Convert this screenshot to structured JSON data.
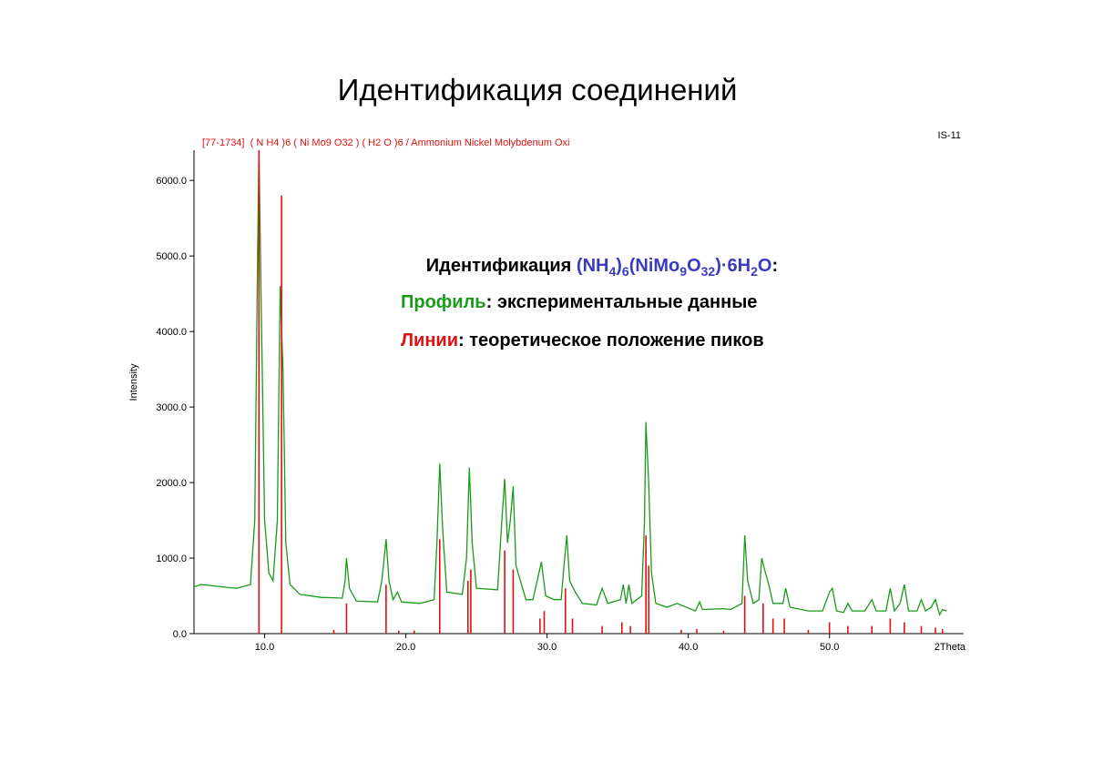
{
  "title": "Идентификация соединений",
  "annotations": [
    [
      "Идентификация ",
      "(NH",
      "4",
      ")",
      "6",
      "(NiMo",
      "9",
      "O",
      "32",
      ")·6H",
      "2",
      "O",
      ":"
    ],
    [
      "Профиль",
      ": экспериментальные данные"
    ],
    [
      "Линии",
      ": теоретическое положение пиков"
    ]
  ],
  "chart_data": {
    "type": "line",
    "title": "[77-1734]  ( N H4 )6 ( Ni Mo9 O32 ) ( H2 O )6 / Ammonium Nickel Molybdenum Oxi",
    "corner_label": "IS-11",
    "ylabel": "Intensity",
    "xlabel": "2Theta",
    "xlim": [
      5,
      59.5
    ],
    "ylim": [
      0,
      6400
    ],
    "xticks": [
      {
        "value": 10,
        "label": "10.0"
      },
      {
        "value": 20,
        "label": "20.0"
      },
      {
        "value": 30,
        "label": "30.0"
      },
      {
        "value": 40,
        "label": "40.0"
      },
      {
        "value": 50,
        "label": "50.0"
      }
    ],
    "yticks": [
      {
        "value": 0,
        "label": "0.0"
      },
      {
        "value": 1000,
        "label": "1000.0"
      },
      {
        "value": 2000,
        "label": "2000.0"
      },
      {
        "value": 3000,
        "label": "3000.0"
      },
      {
        "value": 4000,
        "label": "4000.0"
      },
      {
        "value": 5000,
        "label": "5000.0"
      },
      {
        "value": 6000,
        "label": "6000.0"
      }
    ],
    "series": [
      {
        "name": "Профиль",
        "style": "line",
        "color": "#1a9a1a",
        "x": [
          5,
          5.5,
          6,
          7,
          8,
          9,
          9.3,
          9.5,
          9.6,
          9.75,
          10,
          10.3,
          10.6,
          10.9,
          11.1,
          11.3,
          11.5,
          11.8,
          12.5,
          14,
          15.5,
          15.7,
          15.8,
          16,
          16.5,
          18,
          18.3,
          18.6,
          18.8,
          19.1,
          19.4,
          19.7,
          21,
          22,
          22.2,
          22.4,
          22.6,
          22.9,
          24,
          24.3,
          24.5,
          24.7,
          25,
          26.5,
          26.8,
          27,
          27.2,
          27.4,
          27.6,
          27.8,
          28.5,
          29,
          29.3,
          29.6,
          29.9,
          30.5,
          31,
          31.2,
          31.4,
          31.6,
          32,
          32.5,
          33.5,
          33.9,
          34.3,
          35.2,
          35.4,
          35.6,
          35.8,
          36,
          36.7,
          36.9,
          37,
          37.2,
          37.4,
          37.7,
          38.5,
          39.2,
          40.5,
          40.8,
          41,
          42.5,
          43,
          43.8,
          44,
          44.2,
          44.6,
          45,
          45.2,
          45.4,
          45.7,
          46,
          46.7,
          46.9,
          47.2,
          48.5,
          49.5,
          50,
          50.2,
          50.5,
          51,
          51.3,
          51.6,
          52.5,
          53,
          53.3,
          54,
          54.3,
          54.6,
          55,
          55.3,
          55.6,
          56.2,
          56.5,
          56.8,
          57.2,
          57.5,
          57.8,
          58,
          58.3
        ],
        "values": [
          620,
          650,
          640,
          620,
          600,
          650,
          1500,
          5000,
          6400,
          4500,
          1500,
          800,
          700,
          1500,
          4600,
          3500,
          1200,
          650,
          520,
          480,
          470,
          700,
          1000,
          600,
          430,
          420,
          700,
          1250,
          700,
          450,
          550,
          420,
          400,
          450,
          1200,
          2250,
          1400,
          550,
          520,
          1000,
          2200,
          1200,
          600,
          580,
          1500,
          2050,
          1200,
          1500,
          1950,
          900,
          450,
          450,
          700,
          950,
          500,
          450,
          450,
          900,
          1300,
          700,
          550,
          400,
          380,
          600,
          400,
          450,
          650,
          400,
          650,
          400,
          500,
          1500,
          2800,
          2000,
          800,
          400,
          350,
          400,
          300,
          420,
          320,
          330,
          320,
          400,
          1300,
          700,
          400,
          450,
          1000,
          850,
          650,
          400,
          400,
          600,
          350,
          300,
          300,
          550,
          600,
          300,
          280,
          400,
          300,
          300,
          450,
          300,
          300,
          600,
          300,
          400,
          650,
          300,
          300,
          450,
          300,
          350,
          450,
          250,
          320,
          300
        ]
      },
      {
        "name": "Линии",
        "style": "stem",
        "color": "#e01010",
        "x": [
          9.6,
          11.2,
          14.9,
          15.8,
          18.6,
          19.5,
          20.6,
          22.4,
          24.4,
          24.6,
          27,
          27.6,
          29.5,
          29.8,
          31.3,
          31.8,
          33.9,
          35.3,
          35.9,
          37,
          37.2,
          39.5,
          40.6,
          42.5,
          44,
          45.3,
          46,
          46.8,
          48.5,
          50,
          51.3,
          53,
          54.3,
          55.3,
          56.5,
          57.5,
          58
        ],
        "values": [
          6400,
          5800,
          50,
          400,
          650,
          40,
          40,
          1250,
          700,
          850,
          1100,
          850,
          200,
          300,
          600,
          200,
          100,
          150,
          100,
          1300,
          900,
          50,
          60,
          40,
          500,
          400,
          200,
          200,
          50,
          150,
          100,
          100,
          200,
          150,
          100,
          80,
          60
        ]
      }
    ]
  }
}
